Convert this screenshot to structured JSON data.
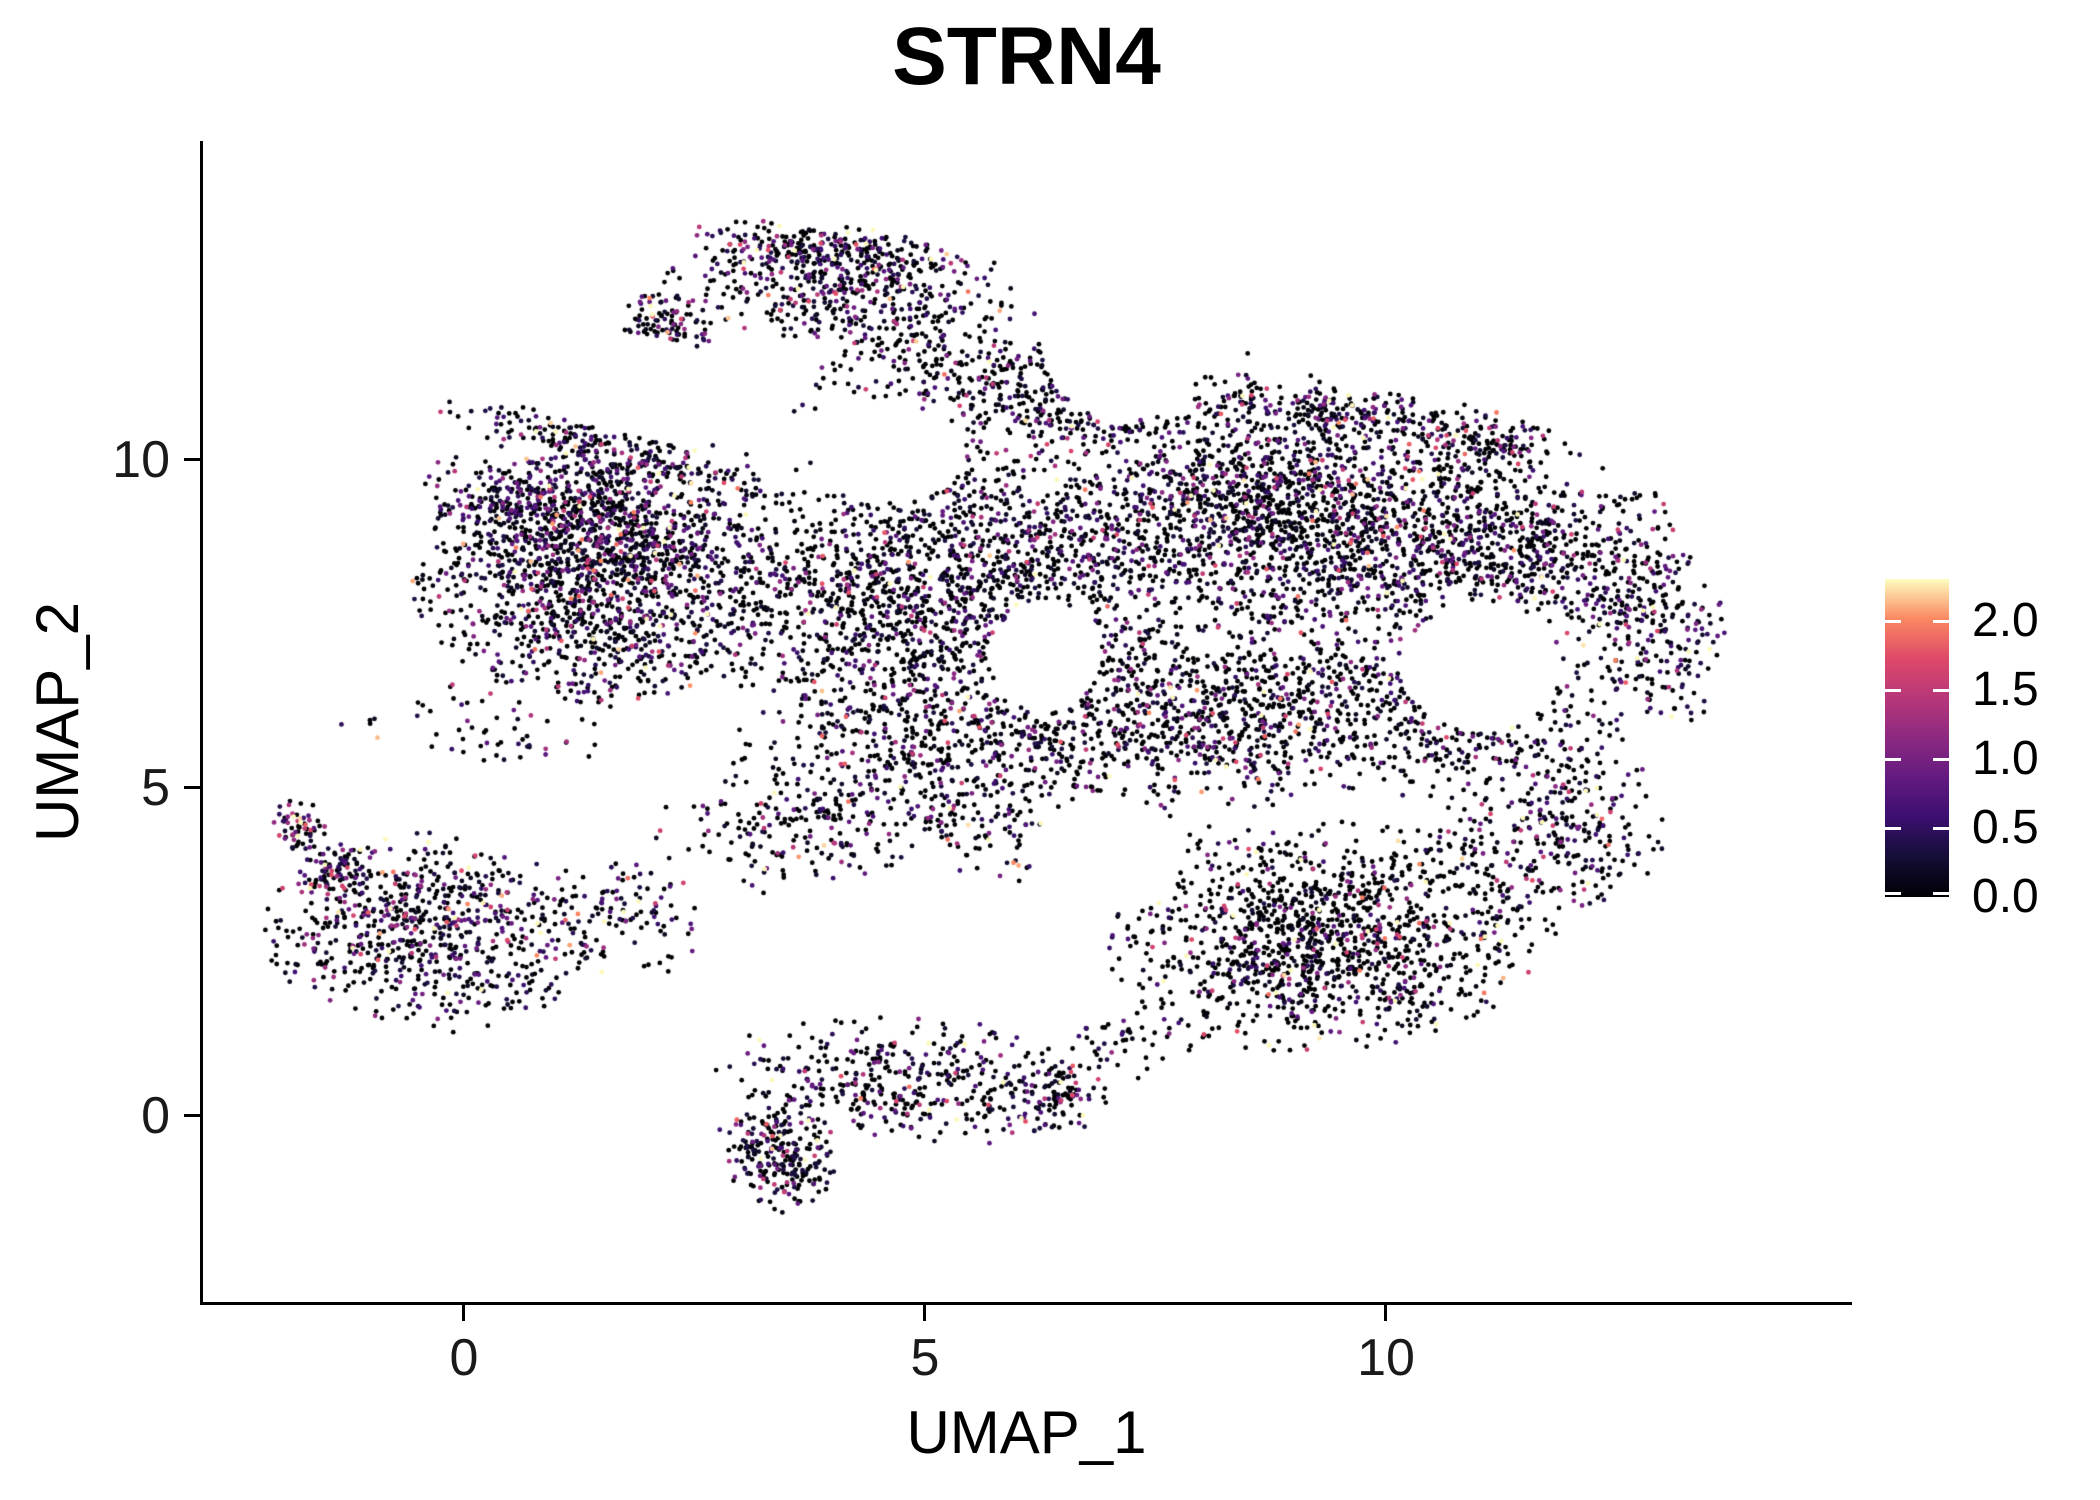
{
  "title": "STRN4",
  "axes": {
    "x_label": "UMAP_1",
    "y_label": "UMAP_2",
    "x_tick_labels": [
      "0",
      "5",
      "10"
    ],
    "y_tick_labels": [
      "10",
      "5",
      "0"
    ]
  },
  "legend": {
    "tick_labels": [
      "2.0",
      "1.5",
      "1.0",
      "0.5",
      "0.0"
    ],
    "colormap": "magma",
    "value_min": 0.0,
    "value_max": 2.31
  },
  "chart_data": {
    "type": "scatter",
    "title": "STRN4",
    "xlabel": "UMAP_1",
    "ylabel": "UMAP_2",
    "x_ticks": [
      0,
      5,
      10
    ],
    "y_ticks": [
      0,
      5,
      10
    ],
    "xlim": [
      -2.8,
      15.0
    ],
    "ylim": [
      -2.8,
      15.5
    ],
    "grid": false,
    "legend_position": "right",
    "point_radius_px": 2.4,
    "n_points_approx": 13900,
    "color_scale": {
      "name": "magma",
      "min": 0.0,
      "max": 2.31,
      "legend_ticks": [
        0.0,
        0.5,
        1.0,
        1.5,
        2.0
      ],
      "stops": [
        "#000004",
        "#140E36",
        "#3B0F70",
        "#641A80",
        "#8C2981",
        "#B73779",
        "#DE4968",
        "#FB8861",
        "#FCFDBF"
      ]
    },
    "seed": 1337,
    "clusters": [
      {
        "id": "blob-left-lobe",
        "cx": 1.5,
        "cy": 8.2,
        "rx": 2.0,
        "ry": 1.85,
        "rot": -15,
        "n": 1450,
        "p_expr": 0.52,
        "expr_mean": 0.6
      },
      {
        "id": "blob-topleft-ridge",
        "cx": 1.7,
        "cy": 10.05,
        "rx": 2.05,
        "ry": 0.4,
        "rot": -22,
        "n": 270,
        "p_expr": 0.55,
        "expr_mean": 0.65
      },
      {
        "id": "blob-topleft-wedge",
        "cx": 1.1,
        "cy": 9.2,
        "rx": 1.6,
        "ry": 0.75,
        "rot": -20,
        "n": 420,
        "p_expr": 0.55,
        "expr_mean": 0.6
      },
      {
        "id": "cap-body",
        "cx": 4.2,
        "cy": 12.6,
        "rx": 2.0,
        "ry": 0.8,
        "rot": -6,
        "n": 430,
        "p_expr": 0.55,
        "expr_mean": 0.65
      },
      {
        "id": "cap-ridge",
        "cx": 3.9,
        "cy": 13.25,
        "rx": 1.45,
        "ry": 0.33,
        "rot": -7,
        "n": 200,
        "p_expr": 0.6,
        "expr_mean": 0.7
      },
      {
        "id": "cap-nub",
        "cx": 2.2,
        "cy": 12.05,
        "rx": 0.5,
        "ry": 0.5,
        "rot": 0,
        "n": 120,
        "p_expr": 0.6,
        "expr_mean": 0.7
      },
      {
        "id": "cap-fill",
        "cx": 5.0,
        "cy": 11.5,
        "rx": 1.4,
        "ry": 0.85,
        "rot": -10,
        "n": 170,
        "p_expr": 0.45,
        "expr_mean": 0.55
      },
      {
        "id": "top-shelf",
        "cx": 6.3,
        "cy": 10.9,
        "rx": 1.2,
        "ry": 0.9,
        "rot": 0,
        "n": 260,
        "p_expr": 0.5,
        "expr_mean": 0.6
      },
      {
        "id": "center",
        "cx": 5.2,
        "cy": 7.9,
        "rx": 2.5,
        "ry": 2.2,
        "rot": 0,
        "n": 1500,
        "p_expr": 0.46,
        "expr_mean": 0.58
      },
      {
        "id": "right-upper",
        "cx": 8.8,
        "cy": 9.3,
        "rx": 2.3,
        "ry": 1.7,
        "rot": -10,
        "n": 1350,
        "p_expr": 0.5,
        "expr_mean": 0.6
      },
      {
        "id": "right-top-ridge",
        "cx": 9.7,
        "cy": 10.7,
        "rx": 2.2,
        "ry": 0.42,
        "rot": -11,
        "n": 240,
        "p_expr": 0.55,
        "expr_mean": 0.65
      },
      {
        "id": "right-top-bump",
        "cx": 11.15,
        "cy": 10.15,
        "rx": 0.6,
        "ry": 0.5,
        "rot": 0,
        "n": 90,
        "p_expr": 0.5,
        "expr_mean": 0.6
      },
      {
        "id": "right-lobe",
        "cx": 11.3,
        "cy": 8.7,
        "rx": 1.8,
        "ry": 1.5,
        "rot": 0,
        "n": 650,
        "p_expr": 0.45,
        "expr_mean": 0.6
      },
      {
        "id": "far-right-bulge",
        "cx": 12.85,
        "cy": 7.5,
        "rx": 0.8,
        "ry": 1.6,
        "rot": 8,
        "n": 270,
        "p_expr": 0.55,
        "expr_mean": 0.7
      },
      {
        "id": "right-ring",
        "cx": 10.8,
        "cy": 6.2,
        "rx": 1.9,
        "ry": 1.5,
        "rot": 0,
        "n": 420,
        "p_expr": 0.42,
        "expr_mean": 0.6
      },
      {
        "id": "mid-right-low",
        "cx": 8.1,
        "cy": 6.1,
        "rx": 2.1,
        "ry": 1.4,
        "rot": 0,
        "n": 700,
        "p_expr": 0.44,
        "expr_mean": 0.6
      },
      {
        "id": "center-low",
        "cx": 5.2,
        "cy": 5.6,
        "rx": 2.2,
        "ry": 1.1,
        "rot": 0,
        "n": 450,
        "p_expr": 0.45,
        "expr_mean": 0.6
      },
      {
        "id": "sparse-band",
        "cx": 6.0,
        "cy": 4.35,
        "rx": 2.6,
        "ry": 0.75,
        "rot": -4,
        "n": 230,
        "p_expr": 0.42,
        "expr_mean": 0.6
      },
      {
        "id": "bottom-right-lobe",
        "cx": 9.4,
        "cy": 2.75,
        "rx": 2.4,
        "ry": 1.7,
        "rot": 8,
        "n": 1300,
        "p_expr": 0.3,
        "expr_mean": 0.85
      },
      {
        "id": "right-sparse",
        "cx": 11.9,
        "cy": 4.4,
        "rx": 1.2,
        "ry": 1.3,
        "rot": 0,
        "n": 280,
        "p_expr": 0.5,
        "expr_mean": 0.7
      },
      {
        "id": "left-cluster",
        "cx": -0.35,
        "cy": 2.8,
        "rx": 1.8,
        "ry": 1.45,
        "rot": -8,
        "n": 720,
        "p_expr": 0.55,
        "expr_mean": 0.65
      },
      {
        "id": "left-tail-nub",
        "cx": -1.8,
        "cy": 4.4,
        "rx": 0.3,
        "ry": 0.42,
        "rot": 0,
        "n": 60,
        "p_expr": 0.6,
        "expr_mean": 0.8
      },
      {
        "id": "left-tail-trail",
        "cx": -1.35,
        "cy": 3.75,
        "rx": 0.45,
        "ry": 0.5,
        "rot": 0,
        "n": 70,
        "p_expr": 0.5,
        "expr_mean": 0.6
      },
      {
        "id": "left-cluster-scatter",
        "cx": 1.7,
        "cy": 3.0,
        "rx": 1.0,
        "ry": 0.95,
        "rot": 0,
        "n": 110,
        "p_expr": 0.42,
        "expr_mean": 0.6
      },
      {
        "id": "connector",
        "cx": 3.4,
        "cy": 4.35,
        "rx": 1.3,
        "ry": 1.05,
        "rot": 0,
        "n": 150,
        "p_expr": 0.45,
        "expr_mean": 0.6
      },
      {
        "id": "left-band-sparse",
        "cx": 0.3,
        "cy": 5.9,
        "rx": 1.6,
        "ry": 0.8,
        "rot": 0,
        "n": 60,
        "p_expr": 0.45,
        "expr_mean": 0.6
      },
      {
        "id": "bottom-band",
        "cx": 4.8,
        "cy": 0.55,
        "rx": 2.0,
        "ry": 0.95,
        "rot": -6,
        "n": 400,
        "p_expr": 0.5,
        "expr_mean": 0.65
      },
      {
        "id": "bottom-subclump",
        "cx": 3.4,
        "cy": -0.55,
        "rx": 0.6,
        "ry": 0.95,
        "rot": 10,
        "n": 240,
        "p_expr": 0.55,
        "expr_mean": 0.65
      },
      {
        "id": "bottom-right-bits",
        "cx": 6.4,
        "cy": 0.35,
        "rx": 0.55,
        "ry": 0.6,
        "rot": 0,
        "n": 90,
        "p_expr": 0.5,
        "expr_mean": 0.6
      },
      {
        "id": "bottom-connector",
        "cx": 7.2,
        "cy": 1.1,
        "rx": 0.7,
        "ry": 0.6,
        "rot": 0,
        "n": 45,
        "p_expr": 0.4,
        "expr_mean": 0.6
      },
      {
        "id": "blob-fill-wide",
        "cx": 6.5,
        "cy": 8.8,
        "rx": 4.5,
        "ry": 3.2,
        "rot": 0,
        "n": 500,
        "p_expr": 0.45,
        "expr_mean": 0.6
      },
      {
        "id": "blob-fill-right",
        "cx": 9.5,
        "cy": 7.5,
        "rx": 3.2,
        "ry": 2.6,
        "rot": 0,
        "n": 350,
        "p_expr": 0.45,
        "expr_mean": 0.6
      }
    ],
    "holes": [
      {
        "cx": 11.05,
        "cy": 6.85,
        "rx": 0.85,
        "ry": 1.0,
        "rot": 0
      },
      {
        "cx": 1.9,
        "cy": 11.15,
        "rx": 1.5,
        "ry": 0.75,
        "rot": -15
      },
      {
        "cx": 7.1,
        "cy": 12.0,
        "rx": 0.85,
        "ry": 1.4,
        "rot": 0
      },
      {
        "cx": 4.6,
        "cy": 10.1,
        "rx": 0.85,
        "ry": 0.75,
        "rot": 0
      },
      {
        "cx": 7.0,
        "cy": 4.0,
        "rx": 0.8,
        "ry": 0.9,
        "rot": 0
      },
      {
        "cx": 6.3,
        "cy": 7.0,
        "rx": 0.6,
        "ry": 0.85,
        "rot": 0
      }
    ]
  }
}
